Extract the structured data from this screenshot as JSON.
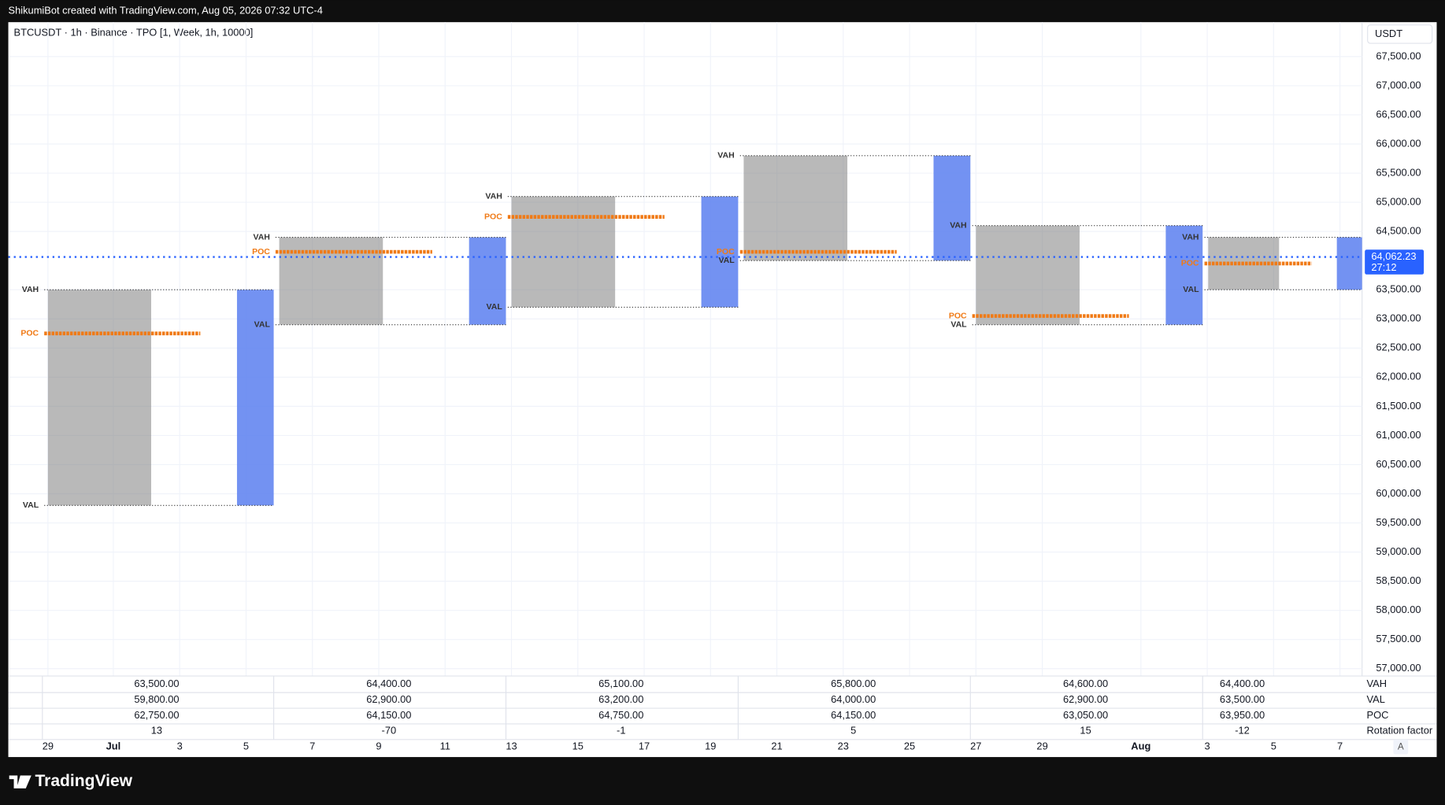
{
  "header": "ShikumiBot created with TradingView.com, Aug 05, 2026 07:32 UTC-4",
  "chart_data": {
    "type": "tpo",
    "title": "BTCUSDT · 1h · Binance · TPO [1, Week, 1h, 10000]",
    "currency": "USDT",
    "ylim": [
      56874,
      68090
    ],
    "yticks": [
      {
        "value": 57000,
        "label": "57,000.00"
      },
      {
        "value": 57500,
        "label": "57,500.00"
      },
      {
        "value": 58000,
        "label": "58,000.00"
      },
      {
        "value": 58500,
        "label": "58,500.00"
      },
      {
        "value": 59000,
        "label": "59,000.00"
      },
      {
        "value": 59500,
        "label": "59,500.00"
      },
      {
        "value": 60000,
        "label": "60,000.00"
      },
      {
        "value": 60500,
        "label": "60,500.00"
      },
      {
        "value": 61000,
        "label": "61,000.00"
      },
      {
        "value": 61500,
        "label": "61,500.00"
      },
      {
        "value": 62000,
        "label": "62,000.00"
      },
      {
        "value": 62500,
        "label": "62,500.00"
      },
      {
        "value": 63000,
        "label": "63,000.00"
      },
      {
        "value": 63500,
        "label": "63,500.00"
      },
      {
        "value": 64500,
        "label": "64,500.00"
      },
      {
        "value": 65000,
        "label": "65,000.00"
      },
      {
        "value": 65500,
        "label": "65,500.00"
      },
      {
        "value": 66000,
        "label": "66,000.00"
      },
      {
        "value": 66500,
        "label": "66,500.00"
      },
      {
        "value": 67000,
        "label": "67,000.00"
      },
      {
        "value": 67500,
        "label": "67,500.00"
      }
    ],
    "last_price": {
      "value": 64062.23,
      "label": "64,062.23"
    },
    "countdown": "27:12",
    "dates": [
      "29",
      "Jul",
      "3",
      "5",
      "7",
      "9",
      "11",
      "13",
      "15",
      "17",
      "19",
      "21",
      "23",
      "25",
      "27",
      "29",
      "Aug",
      "3",
      "5",
      "7"
    ],
    "row_labels": [
      "VAH",
      "VAL",
      "POC",
      "Rotation factor"
    ],
    "weeks": [
      {
        "vah": {
          "value": 63500,
          "label": "63,500.00"
        },
        "val": {
          "value": 59800,
          "label": "59,800.00"
        },
        "poc": {
          "value": 62750,
          "label": "62,750.00"
        },
        "rotation_factor": 13
      },
      {
        "vah": {
          "value": 64400,
          "label": "64,400.00"
        },
        "val": {
          "value": 62900,
          "label": "62,900.00"
        },
        "poc": {
          "value": 64150,
          "label": "64,150.00"
        },
        "rotation_factor": -70
      },
      {
        "vah": {
          "value": 65100,
          "label": "65,100.00"
        },
        "val": {
          "value": 63200,
          "label": "63,200.00"
        },
        "poc": {
          "value": 64750,
          "label": "64,750.00"
        },
        "rotation_factor": -1
      },
      {
        "vah": {
          "value": 65800,
          "label": "65,800.00"
        },
        "val": {
          "value": 64000,
          "label": "64,000.00"
        },
        "poc": {
          "value": 64150,
          "label": "64,150.00"
        },
        "rotation_factor": 5
      },
      {
        "vah": {
          "value": 64600,
          "label": "64,600.00"
        },
        "val": {
          "value": 62900,
          "label": "62,900.00"
        },
        "poc": {
          "value": 63050,
          "label": "63,050.00"
        },
        "rotation_factor": 15
      },
      {
        "vah": {
          "value": 64400,
          "label": "64,400.00"
        },
        "val": {
          "value": 63500,
          "label": "63,500.00"
        },
        "poc": {
          "value": 63950,
          "label": "63,950.00"
        },
        "rotation_factor": -12
      }
    ]
  },
  "footer": {
    "brand": "TradingView",
    "scale_button": "A"
  }
}
